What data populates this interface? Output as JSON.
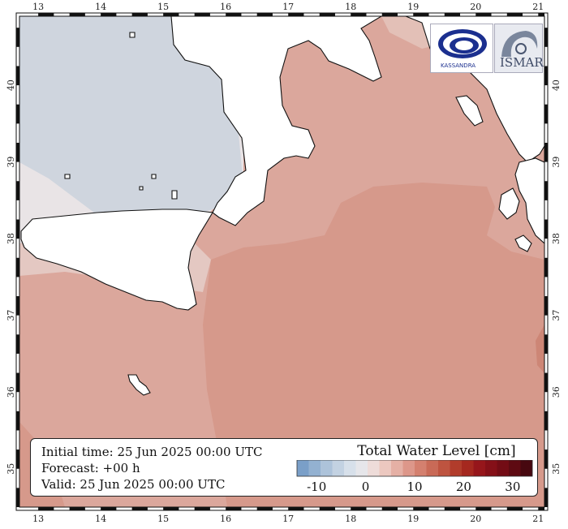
{
  "map": {
    "lon_ticks": [
      "13",
      "14",
      "15",
      "16",
      "17",
      "18",
      "19",
      "20",
      "21"
    ],
    "lat_ticks": [
      "40",
      "39",
      "38",
      "37",
      "36",
      "35"
    ],
    "lon_range": [
      12.7,
      21.1
    ],
    "lat_range": [
      34.5,
      40.9
    ]
  },
  "logos": {
    "left": {
      "icon": "kassandra-eye-icon",
      "text": "KASSANDRA"
    },
    "right": {
      "icon": "ismar-shell-icon",
      "text": "ISMAR"
    }
  },
  "info": {
    "initial_time": "Initial time: 25 Jun 2025 00:00 UTC",
    "forecast": "Forecast: +00 h",
    "valid": "Valid: 25 Jun 2025 00:00 UTC"
  },
  "legend": {
    "title": "Total Water Level [cm]",
    "tick_labels": [
      "-10",
      "0",
      "10",
      "20",
      "30"
    ],
    "tick_values": [
      -10,
      0,
      10,
      20,
      30
    ],
    "range": [
      -14,
      34
    ],
    "colors": [
      "#7a9fc8",
      "#93b1d1",
      "#adc3da",
      "#c3d2e2",
      "#d7e0ea",
      "#e6e6ea",
      "#eedcd9",
      "#ecc8c0",
      "#e5b0a5",
      "#dd978a",
      "#d4806f",
      "#c96a57",
      "#be5440",
      "#b13c2b",
      "#a5281f",
      "#96161b",
      "#851018",
      "#730c15",
      "#5e0a12",
      "#470810"
    ]
  },
  "colors": {
    "sea_neutral": "#e9e4e6",
    "sea_negative": "#cfd5de",
    "sea_light_pos": "#e1bcb3",
    "sea_pos": "#dba79c",
    "sea_mid_pos": "#d6998b",
    "land": "#ffffff"
  }
}
